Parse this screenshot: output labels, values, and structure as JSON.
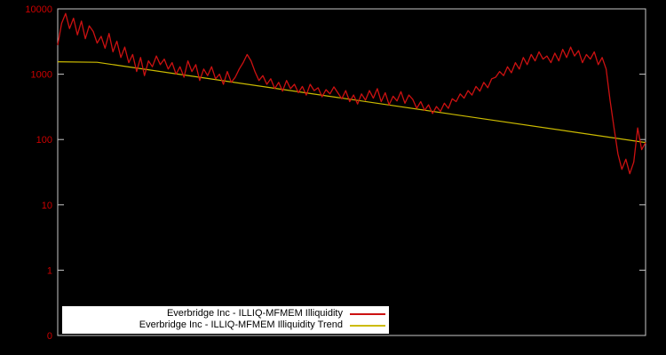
{
  "chart_data": {
    "type": "line",
    "title": "",
    "xlabel": "",
    "ylabel": "",
    "background_color": "#000000",
    "plot_border_color": "#c8c8c8",
    "axis_label_color": "#cc0000",
    "y_scale": "log",
    "ylim": [
      0.1,
      10000
    ],
    "grid": false,
    "legend_position": "bottom-center",
    "y_ticks": [
      {
        "label": "10000",
        "value": 10000
      },
      {
        "label": "1000",
        "value": 1000
      },
      {
        "label": "100",
        "value": 100
      },
      {
        "label": "10",
        "value": 10
      },
      {
        "label": "1",
        "value": 1
      },
      {
        "label": "0",
        "value": 0.1
      }
    ],
    "series": [
      {
        "name": "Everbridge Inc - ILLIQ-MFMEM Illiquidity",
        "color": "#cc1111",
        "values": [
          2800,
          6000,
          8500,
          5000,
          7200,
          4000,
          6500,
          3500,
          5500,
          4500,
          3000,
          3800,
          2500,
          4200,
          2200,
          3200,
          1800,
          2600,
          1500,
          2000,
          1100,
          1800,
          950,
          1600,
          1300,
          1900,
          1400,
          1700,
          1200,
          1500,
          1000,
          1300,
          900,
          1600,
          1100,
          1400,
          800,
          1200,
          950,
          1300,
          850,
          1000,
          700,
          1100,
          750,
          900,
          1200,
          1500,
          2000,
          1600,
          1100,
          800,
          950,
          700,
          850,
          600,
          750,
          550,
          800,
          600,
          700,
          520,
          650,
          480,
          700,
          560,
          620,
          450,
          580,
          500,
          640,
          520,
          420,
          560,
          380,
          480,
          350,
          500,
          400,
          560,
          430,
          600,
          380,
          520,
          340,
          460,
          390,
          540,
          360,
          480,
          410,
          300,
          380,
          280,
          340,
          250,
          320,
          270,
          360,
          300,
          420,
          380,
          500,
          430,
          560,
          480,
          650,
          550,
          750,
          620,
          850,
          900,
          1100,
          950,
          1300,
          1050,
          1500,
          1200,
          1800,
          1400,
          2000,
          1600,
          2200,
          1700,
          1900,
          1500,
          2100,
          1600,
          2400,
          1800,
          2600,
          1900,
          2300,
          1500,
          2000,
          1700,
          2200,
          1400,
          1800,
          1200,
          400,
          150,
          60,
          35,
          50,
          30,
          45,
          150,
          70,
          90
        ]
      },
      {
        "name": "Everbridge Inc - ILLIQ-MFMEM Illiquidity Trend",
        "color": "#ccbb00",
        "anchors": [
          [
            0,
            1550
          ],
          [
            10,
            1520
          ],
          [
            149,
            90
          ]
        ]
      }
    ],
    "legend": {
      "background": "#ffffff",
      "text_color": "#000000"
    }
  }
}
